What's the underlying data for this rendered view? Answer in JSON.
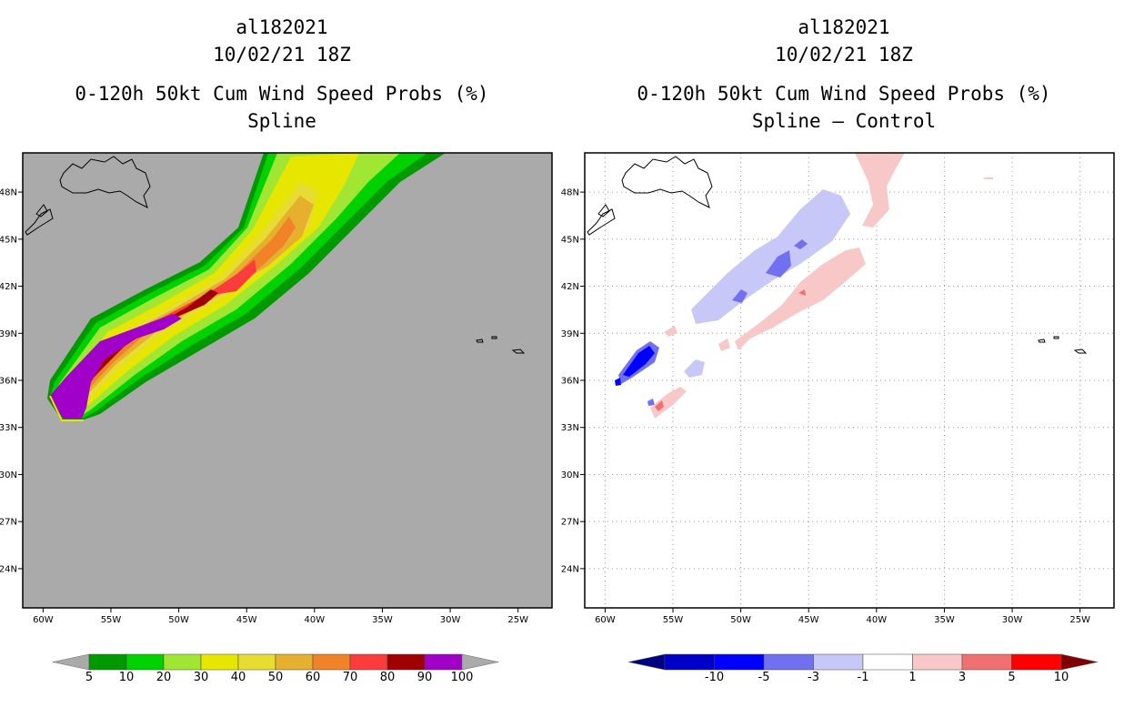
{
  "left_panel": {
    "storm_id": "al182021",
    "datetime": "10/02/21 18Z",
    "product": "0-120h 50kt Cum Wind Speed Probs (%)",
    "subtitle": "Spline"
  },
  "right_panel": {
    "storm_id": "al182021",
    "datetime": "10/02/21 18Z",
    "product": "0-120h 50kt Cum Wind Speed Probs (%)",
    "subtitle": "Spline – Control"
  },
  "chart_data": [
    {
      "type": "heatmap",
      "title": "0-120h 50kt Cum Wind Speed Probs (%) Spline",
      "x_ticks": [
        "60W",
        "55W",
        "50W",
        "45W",
        "40W",
        "35W",
        "30W",
        "25W"
      ],
      "y_ticks": [
        "48N",
        "45N",
        "42N",
        "39N",
        "36N",
        "33N",
        "30N",
        "27N",
        "24N"
      ],
      "xlim": [
        -61.5,
        -22.5
      ],
      "ylim": [
        21.5,
        50.5
      ],
      "background": "#aaaaaa",
      "colorbar": {
        "labels": [
          "5",
          "10",
          "20",
          "30",
          "40",
          "50",
          "60",
          "70",
          "80",
          "90",
          "100"
        ],
        "colors": [
          "#009a00",
          "#00d200",
          "#a0e632",
          "#e6e600",
          "#e6dc32",
          "#e6af2d",
          "#f08228",
          "#fa3c3c",
          "#a00000",
          "#a000c8"
        ],
        "under_color": "#aaaaaa",
        "over_color": "#aaaaaa"
      }
    },
    {
      "type": "heatmap",
      "title": "0-120h 50kt Cum Wind Speed Probs (%) Spline – Control",
      "x_ticks": [
        "60W",
        "55W",
        "50W",
        "45W",
        "40W",
        "35W",
        "30W",
        "25W"
      ],
      "y_ticks": [
        "48N",
        "45N",
        "42N",
        "39N",
        "36N",
        "33N",
        "30N",
        "27N",
        "24N"
      ],
      "xlim": [
        -61.5,
        -22.5
      ],
      "ylim": [
        21.5,
        50.5
      ],
      "grid": true,
      "colorbar": {
        "labels": [
          "-10",
          "-5",
          "-3",
          "-1",
          "1",
          "3",
          "5",
          "10"
        ],
        "colors": [
          "#0000c8",
          "#0000ff",
          "#7070f0",
          "#c8c8f8",
          "#ffffff",
          "#f8c8c8",
          "#f07070",
          "#ff0000"
        ],
        "under_color": "#000080",
        "over_color": "#800000"
      }
    }
  ]
}
